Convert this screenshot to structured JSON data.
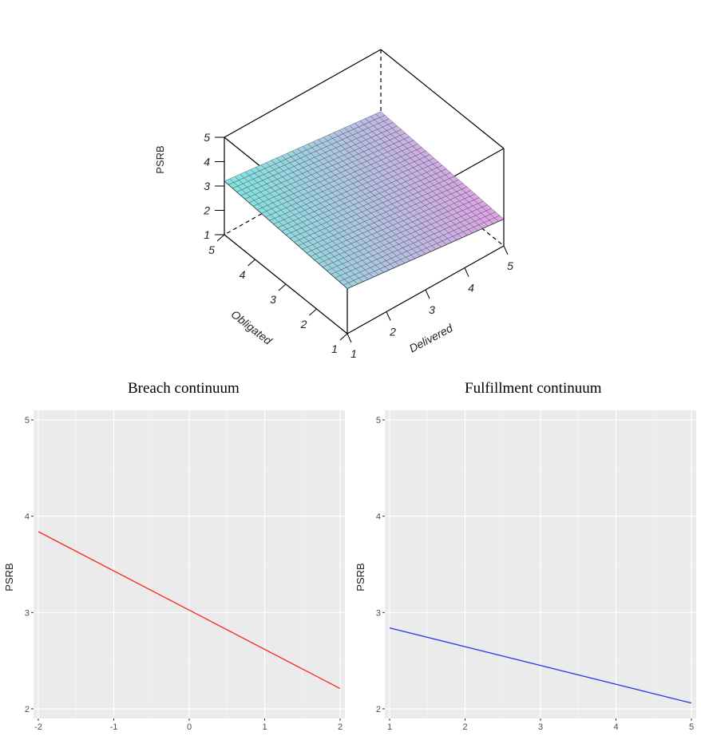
{
  "chart_data": [
    {
      "type": "surface",
      "zlabel": "PSRB",
      "xlabel": "Obligated",
      "ylabel": "Delivered",
      "x_ticks": [
        "1",
        "2",
        "3",
        "4",
        "5"
      ],
      "y_ticks": [
        "1",
        "2",
        "3",
        "4",
        "5"
      ],
      "z_ticks": [
        "1",
        "2",
        "3",
        "4",
        "5"
      ],
      "xlim": [
        1,
        5
      ],
      "ylim": [
        1,
        5
      ],
      "zlim": [
        1,
        5
      ],
      "corners": [
        {
          "obligated": 1,
          "delivered": 1,
          "psrb": 2.85
        },
        {
          "obligated": 5,
          "delivered": 1,
          "psrb": 3.2
        },
        {
          "obligated": 5,
          "delivered": 5,
          "psrb": 2.45
        },
        {
          "obligated": 1,
          "delivered": 5,
          "psrb": 2.1
        }
      ],
      "colors": {
        "low": "#e3a0e6",
        "high": "#7fe6e0",
        "mesh": "#333333"
      }
    },
    {
      "type": "line",
      "title": "Breach continuum",
      "xlabel": "",
      "ylabel": "PSRB",
      "x_ticks": [
        "-2",
        "-1",
        "0",
        "1",
        "2"
      ],
      "y_ticks": [
        "2",
        "3",
        "4",
        "5"
      ],
      "xlim": [
        -2,
        2
      ],
      "ylim": [
        1.9,
        5.1
      ],
      "grid": true,
      "series": [
        {
          "x": [
            -2,
            2
          ],
          "y": [
            3.84,
            2.21
          ],
          "color": "#f8281e"
        }
      ]
    },
    {
      "type": "line",
      "title": "Fulfillment continuum",
      "xlabel": "",
      "ylabel": "PSRB",
      "x_ticks": [
        "1",
        "2",
        "3",
        "4",
        "5"
      ],
      "y_ticks": [
        "2",
        "3",
        "4",
        "5"
      ],
      "xlim": [
        1,
        5
      ],
      "ylim": [
        1.9,
        5.1
      ],
      "grid": true,
      "series": [
        {
          "x": [
            1,
            5
          ],
          "y": [
            2.84,
            2.06
          ],
          "color": "#2b37f0"
        }
      ]
    }
  ]
}
